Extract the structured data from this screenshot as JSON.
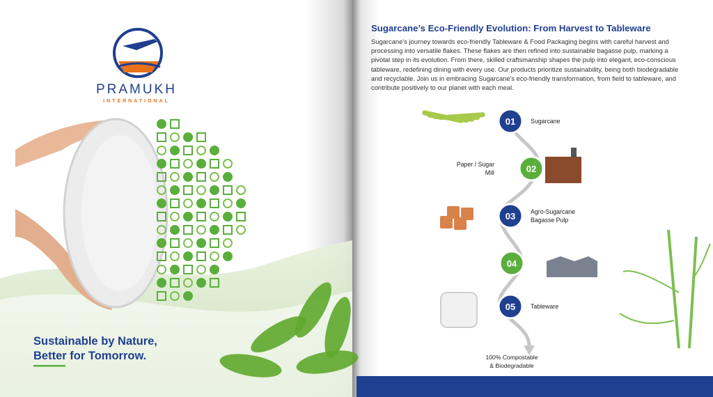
{
  "brand": {
    "name": "PRAMUKH",
    "tagline": "INTERNATIONAL"
  },
  "left": {
    "headline": [
      "Sustainable by Nature,",
      "Better for Tomorrow."
    ]
  },
  "right": {
    "title": "Sugarcane’s Eco-Friendly Evolution: From Harvest to Tableware",
    "body": "Sugarcane's journey towards eco-friendly Tableware & Food Packaging begins with careful harvest and processing into versatile flakes. These flakes are then refined into sustainable bagasse pulp, marking a pivotal step in its evolution. From there, skilled craftsmanship shapes the pulp into elegant, eco-conscious tableware, redefining dining with every use. Our products prioritize sustainability, being both biodegradable and recyclable. Join us in embracing Sugarcane's eco-friendly transformation, from field to tableware, and contribute positively to our planet with each meal.",
    "steps": [
      {
        "number": "01",
        "label": [
          "Sugarcane"
        ]
      },
      {
        "number": "02",
        "label": [
          "Paper / Sugar",
          "Mill"
        ]
      },
      {
        "number": "03",
        "label": [
          "Agro-Sugarcane",
          "Bagasse Pulp"
        ]
      },
      {
        "number": "04"
      },
      {
        "number": "05",
        "label": [
          "Tableware"
        ]
      }
    ],
    "footer": [
      "100% Compostable",
      "& Biodegradable"
    ]
  }
}
